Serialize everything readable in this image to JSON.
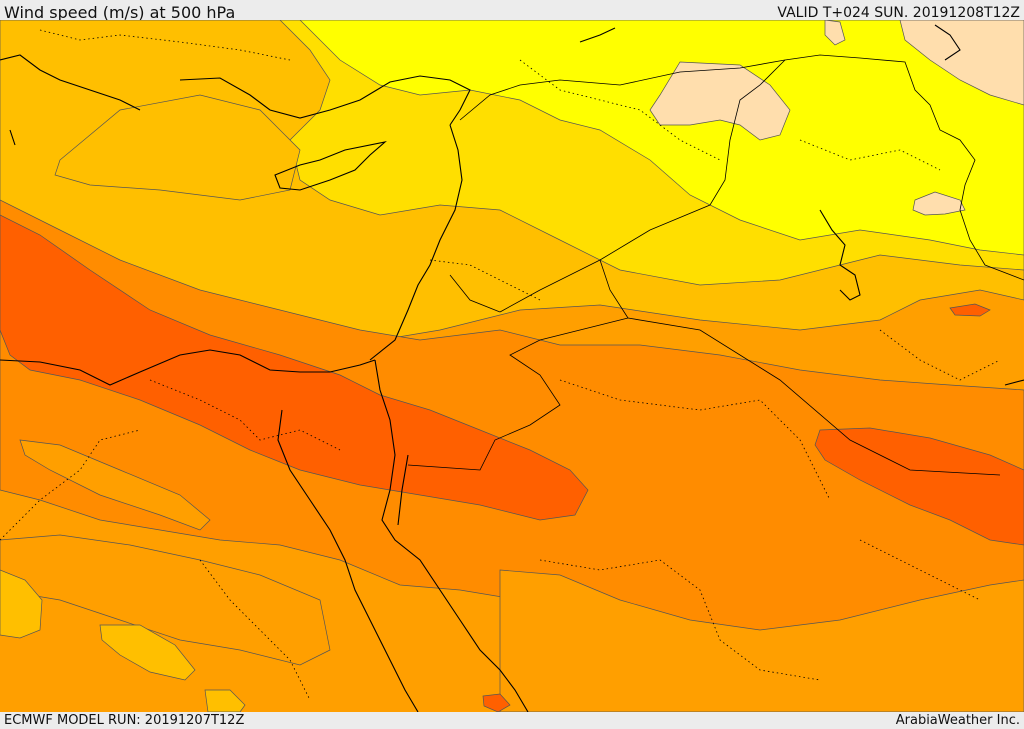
{
  "header": {
    "title": "Wind speed (m/s) at 500 hPa",
    "valid": "VALID T+024 SUN. 20191208T12Z"
  },
  "footer": {
    "model_run": "ECMWF MODEL RUN: 20191207T12Z",
    "credit": "ArabiaWeather Inc."
  },
  "colors": {
    "very_light": "#ffdead",
    "yellow": "#ffff00",
    "gold": "#ffdf00",
    "amber": "#ffbf00",
    "orange_light": "#ff9f00",
    "orange": "#ff8c00",
    "orange_dark": "#ff6000",
    "border": "#000000"
  }
}
